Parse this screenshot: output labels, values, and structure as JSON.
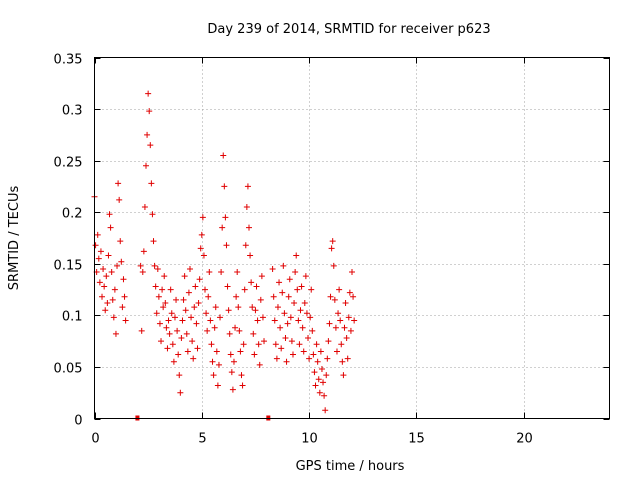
{
  "chart_data": {
    "type": "scatter",
    "title": "Day 239 of 2014, SRMTID for receiver p623",
    "xlabel": "GPS time / hours",
    "ylabel": "SRMTID / TECUs",
    "xlim": [
      0,
      24
    ],
    "ylim": [
      0,
      0.35
    ],
    "x_ticks": [
      0,
      5,
      10,
      15,
      20
    ],
    "x_tick_labels": [
      "0",
      "5",
      "10",
      "15",
      "20"
    ],
    "y_ticks": [
      0,
      0.05,
      0.1,
      0.15,
      0.2,
      0.25,
      0.3,
      0.35
    ],
    "y_tick_labels": [
      "0",
      "0.05",
      "0.1",
      "0.15",
      "0.2",
      "0.25",
      "0.3",
      "0.35"
    ],
    "grid": true,
    "marker": "plus",
    "color": "#e00000",
    "data_gap_markers_x": [
      2.0,
      8.1
    ],
    "series": [
      {
        "name": "SRMTID",
        "points": [
          [
            0.0,
            0.215
          ],
          [
            0.05,
            0.168
          ],
          [
            0.1,
            0.142
          ],
          [
            0.15,
            0.178
          ],
          [
            0.2,
            0.155
          ],
          [
            0.25,
            0.132
          ],
          [
            0.3,
            0.162
          ],
          [
            0.35,
            0.118
          ],
          [
            0.4,
            0.145
          ],
          [
            0.45,
            0.128
          ],
          [
            0.5,
            0.105
          ],
          [
            0.55,
            0.138
          ],
          [
            0.6,
            0.112
          ],
          [
            0.65,
            0.158
          ],
          [
            0.7,
            0.198
          ],
          [
            0.75,
            0.185
          ],
          [
            0.8,
            0.142
          ],
          [
            0.85,
            0.115
          ],
          [
            0.9,
            0.098
          ],
          [
            0.95,
            0.125
          ],
          [
            1.0,
            0.082
          ],
          [
            1.05,
            0.148
          ],
          [
            1.1,
            0.228
          ],
          [
            1.15,
            0.212
          ],
          [
            1.2,
            0.172
          ],
          [
            1.25,
            0.152
          ],
          [
            1.3,
            0.108
          ],
          [
            1.35,
            0.135
          ],
          [
            1.4,
            0.118
          ],
          [
            1.45,
            0.095
          ],
          [
            2.15,
            0.148
          ],
          [
            2.2,
            0.085
          ],
          [
            2.25,
            0.142
          ],
          [
            2.3,
            0.162
          ],
          [
            2.35,
            0.205
          ],
          [
            2.4,
            0.245
          ],
          [
            2.45,
            0.275
          ],
          [
            2.5,
            0.315
          ],
          [
            2.55,
            0.298
          ],
          [
            2.6,
            0.265
          ],
          [
            2.65,
            0.228
          ],
          [
            2.7,
            0.198
          ],
          [
            2.75,
            0.172
          ],
          [
            2.8,
            0.148
          ],
          [
            2.85,
            0.128
          ],
          [
            2.9,
            0.102
          ],
          [
            2.95,
            0.145
          ],
          [
            3.0,
            0.118
          ],
          [
            3.05,
            0.092
          ],
          [
            3.1,
            0.075
          ],
          [
            3.15,
            0.125
          ],
          [
            3.2,
            0.108
          ],
          [
            3.25,
            0.138
          ],
          [
            3.3,
            0.112
          ],
          [
            3.35,
            0.088
          ],
          [
            3.4,
            0.068
          ],
          [
            3.45,
            0.095
          ],
          [
            3.5,
            0.082
          ],
          [
            3.55,
            0.125
          ],
          [
            3.6,
            0.102
          ],
          [
            3.65,
            0.072
          ],
          [
            3.7,
            0.055
          ],
          [
            3.75,
            0.098
          ],
          [
            3.8,
            0.115
          ],
          [
            3.85,
            0.085
          ],
          [
            3.9,
            0.062
          ],
          [
            3.95,
            0.042
          ],
          [
            4.0,
            0.025
          ],
          [
            4.05,
            0.078
          ],
          [
            4.1,
            0.095
          ],
          [
            4.15,
            0.115
          ],
          [
            4.2,
            0.138
          ],
          [
            4.25,
            0.105
          ],
          [
            4.3,
            0.082
          ],
          [
            4.35,
            0.065
          ],
          [
            4.4,
            0.122
          ],
          [
            4.45,
            0.145
          ],
          [
            4.5,
            0.098
          ],
          [
            4.55,
            0.075
          ],
          [
            4.6,
            0.058
          ],
          [
            4.65,
            0.108
          ],
          [
            4.7,
            0.128
          ],
          [
            4.75,
            0.092
          ],
          [
            4.8,
            0.068
          ],
          [
            4.85,
            0.112
          ],
          [
            4.9,
            0.135
          ],
          [
            4.95,
            0.165
          ],
          [
            5.0,
            0.178
          ],
          [
            5.05,
            0.195
          ],
          [
            5.1,
            0.158
          ],
          [
            5.15,
            0.125
          ],
          [
            5.2,
            0.102
          ],
          [
            5.25,
            0.085
          ],
          [
            5.3,
            0.118
          ],
          [
            5.35,
            0.142
          ],
          [
            5.4,
            0.095
          ],
          [
            5.45,
            0.072
          ],
          [
            5.5,
            0.055
          ],
          [
            5.55,
            0.042
          ],
          [
            5.6,
            0.088
          ],
          [
            5.65,
            0.108
          ],
          [
            5.7,
            0.065
          ],
          [
            5.75,
            0.032
          ],
          [
            5.8,
            0.052
          ],
          [
            5.85,
            0.098
          ],
          [
            5.9,
            0.142
          ],
          [
            5.95,
            0.185
          ],
          [
            6.0,
            0.255
          ],
          [
            6.05,
            0.225
          ],
          [
            6.1,
            0.195
          ],
          [
            6.15,
            0.168
          ],
          [
            6.2,
            0.128
          ],
          [
            6.25,
            0.105
          ],
          [
            6.3,
            0.082
          ],
          [
            6.35,
            0.062
          ],
          [
            6.4,
            0.045
          ],
          [
            6.45,
            0.028
          ],
          [
            6.5,
            0.055
          ],
          [
            6.55,
            0.088
          ],
          [
            6.6,
            0.118
          ],
          [
            6.65,
            0.142
          ],
          [
            6.7,
            0.108
          ],
          [
            6.75,
            0.085
          ],
          [
            6.8,
            0.065
          ],
          [
            6.85,
            0.042
          ],
          [
            6.9,
            0.032
          ],
          [
            6.95,
            0.072
          ],
          [
            7.0,
            0.125
          ],
          [
            7.05,
            0.168
          ],
          [
            7.1,
            0.205
          ],
          [
            7.15,
            0.225
          ],
          [
            7.2,
            0.185
          ],
          [
            7.25,
            0.158
          ],
          [
            7.3,
            0.132
          ],
          [
            7.35,
            0.108
          ],
          [
            7.4,
            0.082
          ],
          [
            7.45,
            0.062
          ],
          [
            7.5,
            0.105
          ],
          [
            7.55,
            0.128
          ],
          [
            7.6,
            0.095
          ],
          [
            7.65,
            0.072
          ],
          [
            7.7,
            0.052
          ],
          [
            7.75,
            0.115
          ],
          [
            7.8,
            0.138
          ],
          [
            7.85,
            0.098
          ],
          [
            7.9,
            0.075
          ],
          [
            8.3,
            0.145
          ],
          [
            8.35,
            0.118
          ],
          [
            8.4,
            0.095
          ],
          [
            8.45,
            0.072
          ],
          [
            8.5,
            0.058
          ],
          [
            8.55,
            0.108
          ],
          [
            8.6,
            0.132
          ],
          [
            8.65,
            0.088
          ],
          [
            8.7,
            0.068
          ],
          [
            8.75,
            0.122
          ],
          [
            8.8,
            0.148
          ],
          [
            8.85,
            0.102
          ],
          [
            8.9,
            0.078
          ],
          [
            8.95,
            0.055
          ],
          [
            9.0,
            0.092
          ],
          [
            9.05,
            0.118
          ],
          [
            9.1,
            0.135
          ],
          [
            9.15,
            0.098
          ],
          [
            9.2,
            0.075
          ],
          [
            9.25,
            0.062
          ],
          [
            9.3,
            0.112
          ],
          [
            9.35,
            0.142
          ],
          [
            9.4,
            0.158
          ],
          [
            9.45,
            0.125
          ],
          [
            9.5,
            0.095
          ],
          [
            9.55,
            0.072
          ],
          [
            9.6,
            0.105
          ],
          [
            9.65,
            0.128
          ],
          [
            9.7,
            0.088
          ],
          [
            9.75,
            0.065
          ],
          [
            9.8,
            0.112
          ],
          [
            9.85,
            0.138
          ],
          [
            9.9,
            0.102
          ],
          [
            9.95,
            0.078
          ],
          [
            10.0,
            0.058
          ],
          [
            10.05,
            0.098
          ],
          [
            10.1,
            0.125
          ],
          [
            10.15,
            0.085
          ],
          [
            10.2,
            0.062
          ],
          [
            10.25,
            0.045
          ],
          [
            10.3,
            0.032
          ],
          [
            10.35,
            0.072
          ],
          [
            10.4,
            0.055
          ],
          [
            10.45,
            0.038
          ],
          [
            10.5,
            0.025
          ],
          [
            10.55,
            0.065
          ],
          [
            10.6,
            0.048
          ],
          [
            10.65,
            0.035
          ],
          [
            10.7,
            0.022
          ],
          [
            10.75,
            0.008
          ],
          [
            10.8,
            0.042
          ],
          [
            10.85,
            0.058
          ],
          [
            10.9,
            0.075
          ],
          [
            10.95,
            0.092
          ],
          [
            11.0,
            0.118
          ],
          [
            11.05,
            0.165
          ],
          [
            11.1,
            0.172
          ],
          [
            11.15,
            0.148
          ],
          [
            11.2,
            0.115
          ],
          [
            11.25,
            0.088
          ],
          [
            11.3,
            0.065
          ],
          [
            11.35,
            0.102
          ],
          [
            11.4,
            0.125
          ],
          [
            11.45,
            0.095
          ],
          [
            11.5,
            0.072
          ],
          [
            11.55,
            0.055
          ],
          [
            11.6,
            0.042
          ],
          [
            11.65,
            0.088
          ],
          [
            11.7,
            0.112
          ],
          [
            11.75,
            0.078
          ],
          [
            11.8,
            0.058
          ],
          [
            11.85,
            0.098
          ],
          [
            11.9,
            0.122
          ],
          [
            11.95,
            0.085
          ],
          [
            12.0,
            0.142
          ],
          [
            12.05,
            0.118
          ],
          [
            12.1,
            0.095
          ]
        ]
      }
    ]
  }
}
